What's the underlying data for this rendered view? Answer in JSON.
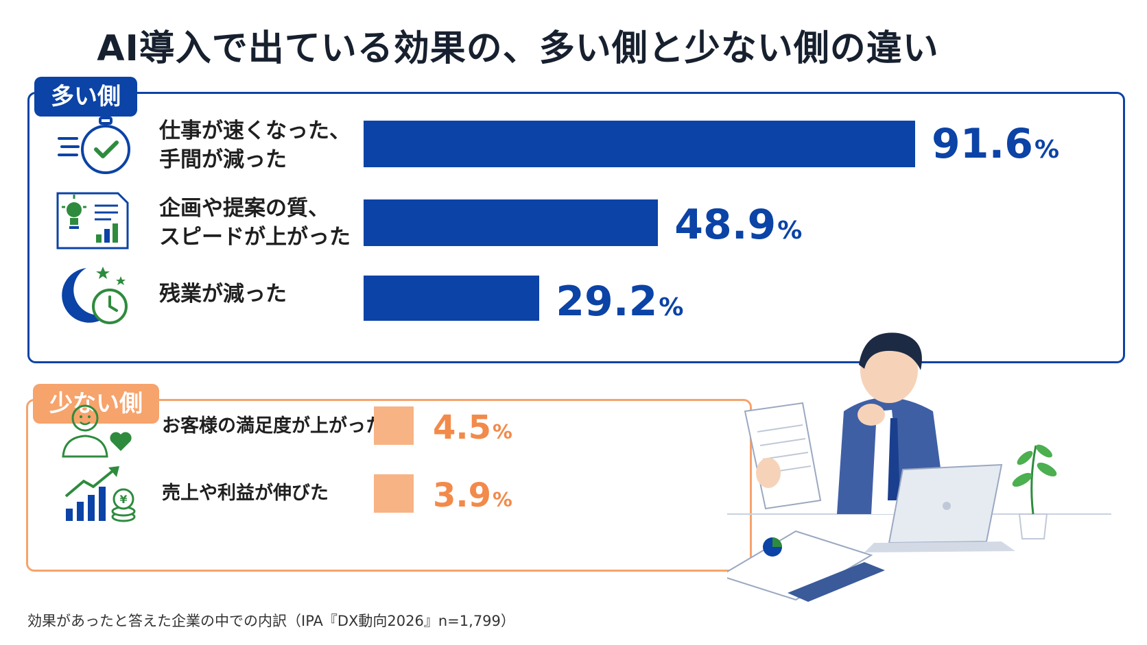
{
  "title": "AI導入で出ている効果の、多い側と少ない側の違い",
  "colors": {
    "more": "#0b43a6",
    "less": "#f6a36c",
    "less_value": "#f28a4a",
    "green": "#2e8b3e"
  },
  "more_tag": "多い側",
  "less_tag": "少ない側",
  "unit": "%",
  "footnote": "効果があったと答えた企業の中での内訳（IPA『DX動向2026』n=1,799）",
  "chart_data": [
    {
      "type": "bar",
      "group": "多い側",
      "categories": [
        "仕事が速くなった、手間が減った",
        "企画や提案の質、スピードが上がった",
        "残業が減った"
      ],
      "values": [
        91.6,
        48.9,
        29.2
      ],
      "value_labels": [
        "91.6",
        "48.9",
        "29.2"
      ],
      "label_lines": [
        [
          "仕事が速くなった、",
          "手間が減った"
        ],
        [
          "企画や提案の質、",
          "スピードが上がった"
        ],
        [
          "残業が減った"
        ]
      ],
      "icons": [
        "stopwatch-check-icon",
        "idea-report-chart-icon",
        "moon-clock-icon"
      ],
      "xlim": [
        0,
        100
      ]
    },
    {
      "type": "bar",
      "group": "少ない側",
      "categories": [
        "お客様の満足度が上がった",
        "売上や利益が伸びた"
      ],
      "values": [
        4.5,
        3.9
      ],
      "value_labels": [
        "4.5",
        "3.9"
      ],
      "icons": [
        "customer-heart-icon",
        "sales-growth-icon"
      ],
      "xlim": [
        0,
        100
      ]
    }
  ]
}
